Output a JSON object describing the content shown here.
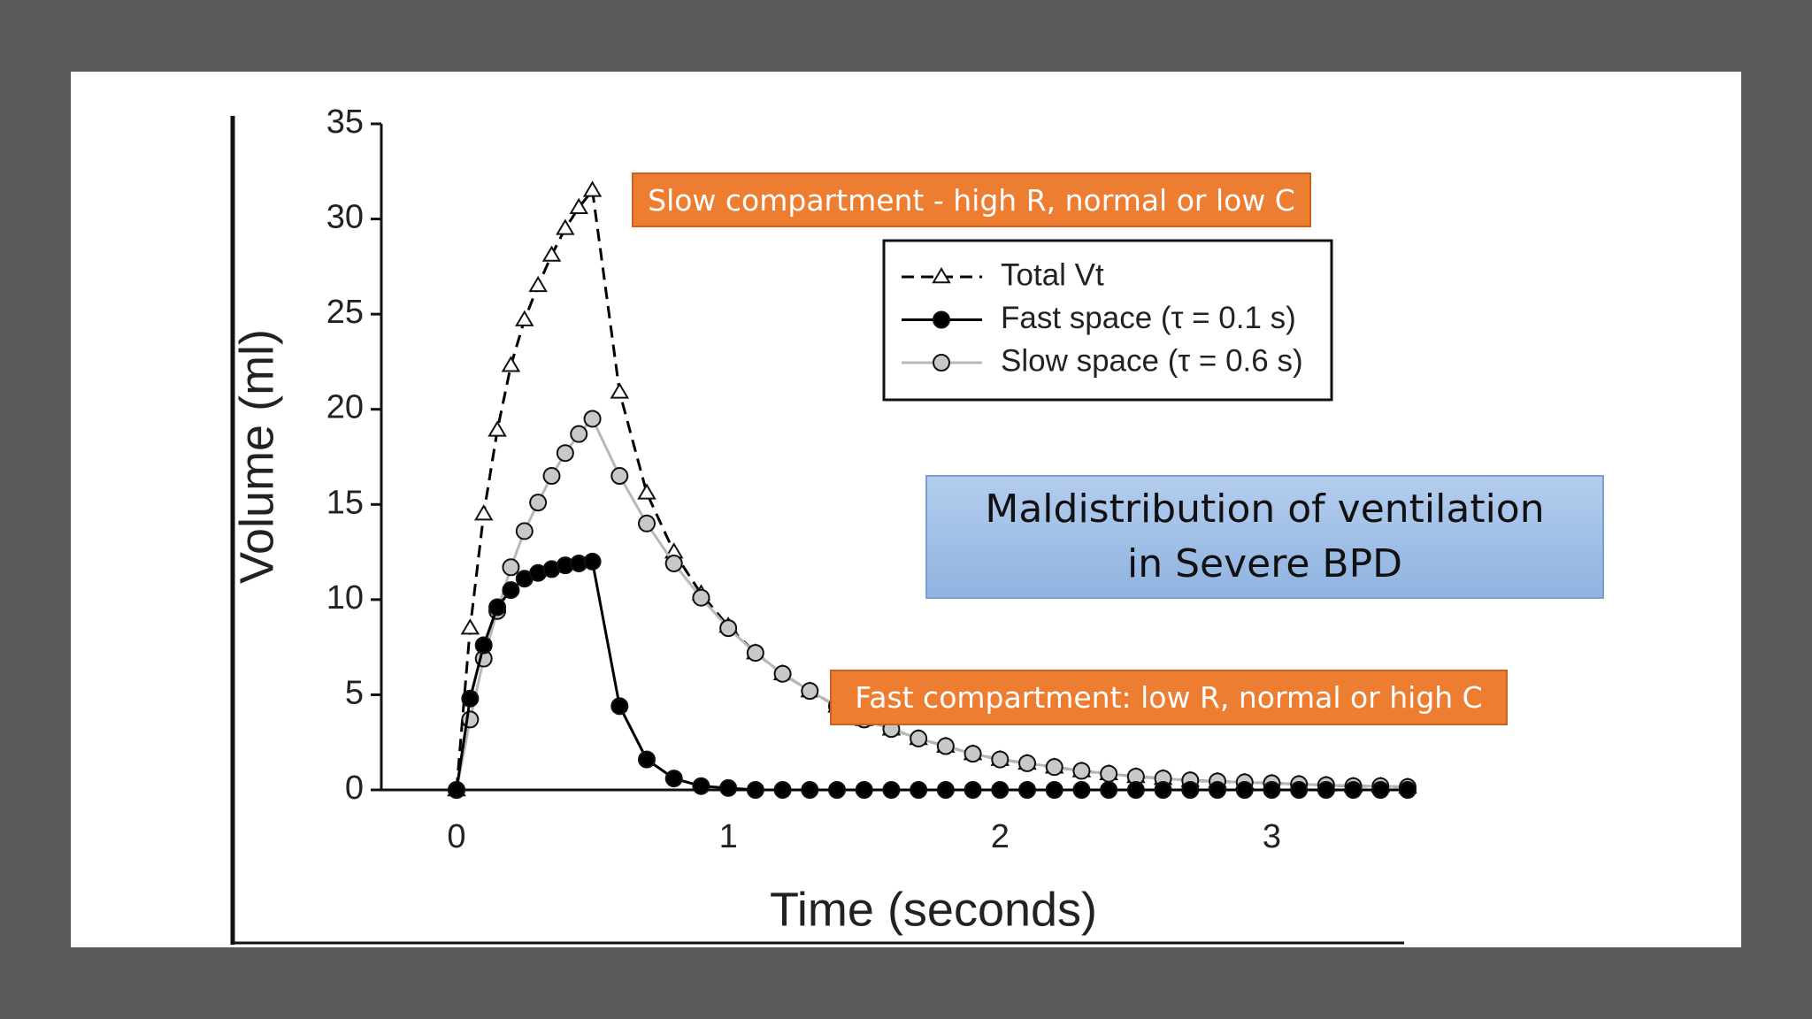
{
  "chart_data": {
    "type": "line",
    "x_label": "Time (seconds)",
    "y_label": "Volume (ml)",
    "xlim": [
      0,
      3.5
    ],
    "ylim": [
      0,
      35
    ],
    "xticks": [
      0,
      1,
      2,
      3
    ],
    "yticks": [
      0,
      5,
      10,
      15,
      20,
      25,
      30,
      35
    ],
    "x": [
      0,
      0.05,
      0.1,
      0.15,
      0.2,
      0.25,
      0.3,
      0.35,
      0.4,
      0.45,
      0.5,
      0.6,
      0.7,
      0.8,
      0.9,
      1.0,
      1.1,
      1.2,
      1.3,
      1.4,
      1.5,
      1.6,
      1.7,
      1.8,
      1.9,
      2.0,
      2.1,
      2.2,
      2.3,
      2.4,
      2.5,
      2.6,
      2.7,
      2.8,
      2.9,
      3.0,
      3.1,
      3.2,
      3.3,
      3.4,
      3.5
    ],
    "series": [
      {
        "name": "Total Vt",
        "color": "#000000",
        "dashed": true,
        "marker": "triangle",
        "marker_fill": "#ffffff",
        "values": [
          0,
          8.5,
          14.5,
          18.9,
          22.3,
          24.7,
          26.5,
          28.1,
          29.5,
          30.6,
          31.5,
          20.9,
          15.6,
          12.5,
          10.3,
          8.6,
          7.2,
          6.1,
          5.2,
          4.4,
          3.7,
          3.2,
          2.7,
          2.3,
          1.9,
          1.6,
          1.4,
          1.2,
          1.0,
          0.85,
          0.7,
          0.6,
          0.5,
          0.45,
          0.4,
          0.35,
          0.3,
          0.25,
          0.2,
          0.2,
          0.15
        ]
      },
      {
        "name": "Slow space (τ = 0.6 s)",
        "color": "#b8b8b8",
        "dashed": false,
        "marker": "circle",
        "marker_fill": "#c8c8c8",
        "values": [
          0,
          3.7,
          6.9,
          9.4,
          11.7,
          13.6,
          15.1,
          16.5,
          17.7,
          18.7,
          19.5,
          16.5,
          14.0,
          11.9,
          10.1,
          8.5,
          7.2,
          6.1,
          5.2,
          4.4,
          3.7,
          3.2,
          2.7,
          2.3,
          1.9,
          1.6,
          1.4,
          1.2,
          1.0,
          0.85,
          0.7,
          0.6,
          0.5,
          0.45,
          0.4,
          0.35,
          0.3,
          0.25,
          0.2,
          0.2,
          0.15
        ]
      },
      {
        "name": "Fast space (τ = 0.1 s)",
        "color": "#000000",
        "dashed": false,
        "marker": "circle",
        "marker_fill": "#000000",
        "values": [
          0,
          4.8,
          7.6,
          9.6,
          10.5,
          11.1,
          11.4,
          11.6,
          11.8,
          11.9,
          12.0,
          4.4,
          1.6,
          0.6,
          0.2,
          0.1,
          0,
          0,
          0,
          0,
          0,
          0,
          0,
          0,
          0,
          0,
          0,
          0,
          0,
          0,
          0,
          0,
          0,
          0,
          0,
          0,
          0,
          0,
          0,
          0,
          0
        ]
      }
    ],
    "legend_order": [
      0,
      2,
      1
    ],
    "annotations": [
      "Slow compartment - high R, normal or low C",
      "Fast compartment: low R, normal or high C",
      "Maldistribution of ventilation in Severe BPD"
    ]
  }
}
